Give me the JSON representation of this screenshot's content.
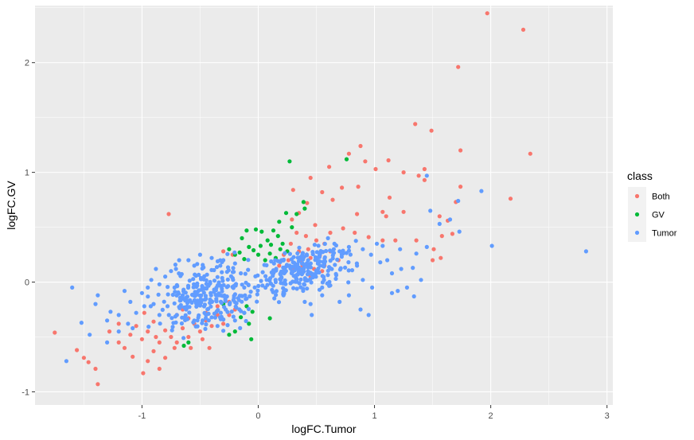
{
  "chart_data": {
    "type": "scatter",
    "title": "",
    "xlabel": "logFC.Tumor",
    "ylabel": "logFC.GV",
    "xlim": [
      -1.92,
      3.05
    ],
    "ylim": [
      -1.12,
      2.52
    ],
    "x_ticks": [
      -1,
      0,
      1,
      2,
      3
    ],
    "y_ticks": [
      -1,
      0,
      1,
      2
    ],
    "x_tick_labels": [
      "-1",
      "0",
      "1",
      "2",
      "3"
    ],
    "y_tick_labels": [
      "-1",
      "0",
      "1",
      "2"
    ],
    "grid": true,
    "panel_background": "#EBEBEB",
    "legend": {
      "title": "class",
      "position": "right",
      "entries": [
        {
          "label": "Both",
          "color": "#F8766D"
        },
        {
          "label": "GV",
          "color": "#00BA38"
        },
        {
          "label": "Tumor",
          "color": "#619CFF"
        }
      ]
    },
    "series": [
      {
        "name": "Both",
        "color": "#F8766D",
        "points": [
          [
            1.97,
            2.45
          ],
          [
            2.28,
            2.3
          ],
          [
            1.72,
            1.96
          ],
          [
            1.35,
            1.44
          ],
          [
            1.49,
            1.38
          ],
          [
            0.88,
            1.24
          ],
          [
            1.74,
            1.2
          ],
          [
            2.34,
            1.17
          ],
          [
            0.78,
            1.17
          ],
          [
            0.92,
            1.1
          ],
          [
            1.12,
            1.11
          ],
          [
            0.61,
            1.05
          ],
          [
            1.01,
            1.03
          ],
          [
            1.25,
            1.0
          ],
          [
            1.43,
            1.03
          ],
          [
            0.45,
            0.95
          ],
          [
            1.38,
            0.97
          ],
          [
            1.43,
            0.93
          ],
          [
            0.86,
            0.87
          ],
          [
            1.74,
            0.87
          ],
          [
            0.3,
            0.84
          ],
          [
            0.55,
            0.82
          ],
          [
            0.72,
            0.86
          ],
          [
            2.17,
            0.76
          ],
          [
            1.13,
            0.77
          ],
          [
            1.7,
            0.73
          ],
          [
            0.64,
            0.75
          ],
          [
            1.07,
            0.64
          ],
          [
            0.85,
            0.62
          ],
          [
            1.25,
            0.64
          ],
          [
            1.56,
            0.6
          ],
          [
            1.63,
            0.56
          ],
          [
            1.1,
            0.6
          ],
          [
            -0.77,
            0.62
          ],
          [
            0.42,
            0.72
          ],
          [
            0.35,
            0.63
          ],
          [
            0.29,
            0.57
          ],
          [
            0.49,
            0.52
          ],
          [
            0.62,
            0.45
          ],
          [
            0.73,
            0.49
          ],
          [
            0.83,
            0.45
          ],
          [
            0.95,
            0.41
          ],
          [
            1.07,
            0.38
          ],
          [
            1.18,
            0.38
          ],
          [
            1.36,
            0.38
          ],
          [
            1.58,
            0.42
          ],
          [
            1.51,
            0.3
          ],
          [
            1.67,
            0.44
          ],
          [
            1.5,
            0.2
          ],
          [
            1.57,
            0.22
          ],
          [
            0.33,
            0.45
          ],
          [
            0.41,
            0.42
          ],
          [
            0.5,
            0.38
          ],
          [
            0.57,
            0.35
          ],
          [
            0.28,
            0.35
          ],
          [
            0.35,
            0.28
          ],
          [
            0.43,
            0.3
          ],
          [
            0.22,
            0.25
          ],
          [
            0.26,
            0.2
          ],
          [
            0.36,
            0.2
          ],
          [
            0.45,
            0.22
          ],
          [
            0.53,
            0.24
          ],
          [
            0.62,
            0.28
          ],
          [
            0.69,
            0.2
          ],
          [
            0.18,
            0.15
          ],
          [
            0.22,
            0.1
          ],
          [
            0.3,
            0.12
          ],
          [
            0.38,
            0.15
          ],
          [
            0.48,
            0.12
          ],
          [
            0.57,
            0.15
          ],
          [
            -1.75,
            -0.46
          ],
          [
            -1.56,
            -0.62
          ],
          [
            -1.5,
            -0.69
          ],
          [
            -1.46,
            -0.73
          ],
          [
            -1.4,
            -0.79
          ],
          [
            -1.38,
            -0.93
          ],
          [
            -1.28,
            -0.45
          ],
          [
            -1.2,
            -0.55
          ],
          [
            -1.15,
            -0.6
          ],
          [
            -1.08,
            -0.68
          ],
          [
            -0.99,
            -0.83
          ],
          [
            -0.95,
            -0.72
          ],
          [
            -0.9,
            -0.63
          ],
          [
            -0.85,
            -0.79
          ],
          [
            -0.8,
            -0.69
          ],
          [
            -1.05,
            -0.4
          ],
          [
            -1.0,
            -0.52
          ],
          [
            -0.95,
            -0.45
          ],
          [
            -0.9,
            -0.36
          ],
          [
            -0.85,
            -0.55
          ],
          [
            -0.8,
            -0.44
          ],
          [
            -0.75,
            -0.5
          ],
          [
            -0.7,
            -0.55
          ],
          [
            -0.65,
            -0.42
          ],
          [
            -0.6,
            -0.5
          ],
          [
            -0.55,
            -0.38
          ],
          [
            -0.5,
            -0.45
          ],
          [
            -0.45,
            -0.35
          ],
          [
            -0.4,
            -0.4
          ],
          [
            -0.35,
            -0.3
          ],
          [
            -0.3,
            -0.38
          ],
          [
            -0.25,
            -0.3
          ],
          [
            -0.2,
            -0.25
          ],
          [
            -0.7,
            -0.3
          ],
          [
            -0.65,
            -0.25
          ],
          [
            -0.6,
            -0.33
          ],
          [
            -0.5,
            -0.2
          ],
          [
            -0.45,
            -0.28
          ],
          [
            -0.35,
            -0.22
          ],
          [
            -0.25,
            -0.18
          ],
          [
            -1.1,
            -0.48
          ],
          [
            -0.98,
            -0.28
          ],
          [
            -0.88,
            -0.5
          ],
          [
            -0.72,
            -0.6
          ],
          [
            -0.58,
            -0.6
          ],
          [
            -0.48,
            -0.52
          ],
          [
            -0.42,
            -0.6
          ],
          [
            -1.2,
            -0.38
          ],
          [
            -0.3,
            0.28
          ],
          [
            -0.22,
            0.25
          ],
          [
            0.45,
            0.05
          ],
          [
            0.55,
            0.1
          ]
        ]
      },
      {
        "name": "GV",
        "color": "#00BA38",
        "points": [
          [
            0.27,
            1.1
          ],
          [
            0.76,
            1.12
          ],
          [
            0.4,
            0.67
          ],
          [
            0.39,
            0.73
          ],
          [
            0.24,
            0.63
          ],
          [
            0.33,
            0.62
          ],
          [
            0.18,
            0.55
          ],
          [
            0.29,
            0.5
          ],
          [
            -0.02,
            0.48
          ],
          [
            0.03,
            0.46
          ],
          [
            -0.1,
            0.47
          ],
          [
            -0.14,
            0.4
          ],
          [
            0.08,
            0.38
          ],
          [
            0.17,
            0.42
          ],
          [
            0.02,
            0.33
          ],
          [
            0.11,
            0.34
          ],
          [
            0.19,
            0.3
          ],
          [
            -0.08,
            0.32
          ],
          [
            0.0,
            0.25
          ],
          [
            0.1,
            0.26
          ],
          [
            -0.16,
            0.27
          ],
          [
            -0.04,
            0.29
          ],
          [
            0.06,
            0.2
          ],
          [
            0.15,
            0.22
          ],
          [
            -0.12,
            0.21
          ],
          [
            0.21,
            0.35
          ],
          [
            0.25,
            0.28
          ],
          [
            -0.25,
            0.3
          ],
          [
            -0.2,
            0.25
          ],
          [
            0.13,
            0.47
          ],
          [
            -0.1,
            -0.22
          ],
          [
            -0.05,
            -0.27
          ],
          [
            -0.15,
            -0.32
          ],
          [
            -0.08,
            -0.38
          ],
          [
            -0.2,
            -0.45
          ],
          [
            -0.25,
            -0.48
          ],
          [
            -0.06,
            -0.52
          ],
          [
            -0.6,
            -0.55
          ],
          [
            0.1,
            -0.33
          ],
          [
            -0.12,
            -0.28
          ],
          [
            -0.64,
            -0.58
          ],
          [
            -0.3,
            -0.2
          ]
        ]
      },
      {
        "name": "Tumor",
        "color": "#619CFF",
        "points": [
          [
            2.82,
            0.28
          ],
          [
            2.01,
            0.33
          ],
          [
            1.92,
            0.83
          ],
          [
            1.73,
            0.46
          ],
          [
            1.65,
            0.57
          ],
          [
            1.48,
            0.65
          ],
          [
            1.56,
            0.53
          ],
          [
            1.45,
            0.32
          ],
          [
            1.36,
            0.26
          ],
          [
            1.22,
            0.3
          ],
          [
            1.07,
            0.33
          ],
          [
            1.45,
            0.97
          ],
          [
            1.72,
            0.74
          ],
          [
            1.33,
            0.13
          ],
          [
            1.23,
            0.12
          ],
          [
            1.11,
            0.2
          ],
          [
            0.97,
            0.25
          ],
          [
            1.15,
            0.08
          ],
          [
            1.28,
            -0.05
          ],
          [
            1.4,
            0.02
          ],
          [
            1.34,
            -0.13
          ],
          [
            1.15,
            -0.1
          ],
          [
            0.98,
            -0.05
          ],
          [
            0.9,
            0.02
          ],
          [
            0.85,
            0.15
          ],
          [
            0.78,
            -0.12
          ],
          [
            0.7,
            -0.18
          ],
          [
            0.62,
            -0.03
          ],
          [
            0.88,
            -0.25
          ],
          [
            0.45,
            -0.2
          ],
          [
            0.46,
            -0.3
          ],
          [
            0.55,
            -0.12
          ],
          [
            0.95,
            -0.3
          ],
          [
            1.05,
            0.18
          ],
          [
            1.2,
            -0.08
          ],
          [
            0.78,
            0.32
          ],
          [
            0.6,
            0.4
          ],
          [
            0.7,
            0.28
          ],
          [
            -1.6,
            -0.05
          ],
          [
            -1.4,
            -0.2
          ],
          [
            -1.38,
            -0.12
          ],
          [
            -1.27,
            -0.27
          ],
          [
            -1.2,
            -0.3
          ],
          [
            -1.1,
            -0.18
          ],
          [
            -1.0,
            -0.1
          ],
          [
            -0.95,
            -0.05
          ],
          [
            -0.92,
            0.02
          ],
          [
            -0.85,
            -0.02
          ],
          [
            -0.8,
            0.05
          ],
          [
            -0.75,
            0.1
          ],
          [
            -0.68,
            0.2
          ],
          [
            -0.6,
            0.2
          ],
          [
            -0.55,
            0.15
          ],
          [
            -1.65,
            -0.72
          ],
          [
            -1.45,
            -0.48
          ],
          [
            -1.3,
            -0.55
          ],
          [
            -1.2,
            -0.45
          ],
          [
            -1.12,
            -0.38
          ],
          [
            -1.05,
            -0.28
          ],
          [
            -0.98,
            -0.22
          ],
          [
            -0.9,
            -0.2
          ],
          [
            -0.85,
            -0.3
          ],
          [
            -0.78,
            -0.22
          ],
          [
            -0.7,
            -0.3
          ],
          [
            -0.62,
            -0.25
          ],
          [
            -0.55,
            -0.35
          ],
          [
            -1.3,
            -0.35
          ],
          [
            -1.15,
            -0.08
          ],
          [
            -0.88,
            0.12
          ],
          [
            -0.72,
            -0.05
          ],
          [
            -0.5,
            0.25
          ],
          [
            -0.4,
            0.22
          ],
          [
            -0.3,
            0.2
          ],
          [
            -0.2,
            0.17
          ],
          [
            -0.15,
            0.08
          ],
          [
            -0.12,
            -0.05
          ],
          [
            -0.1,
            -0.15
          ],
          [
            -0.2,
            -0.35
          ],
          [
            -0.28,
            -0.25
          ],
          [
            -0.35,
            -0.4
          ],
          [
            -0.45,
            -0.15
          ],
          [
            -0.65,
            -0.12
          ],
          [
            0.2,
            0.2
          ],
          [
            0.15,
            0.0
          ],
          [
            0.65,
            0.3
          ],
          [
            0.9,
            0.3
          ],
          [
            1.02,
            0.35
          ],
          [
            -1.52,
            -0.37
          ],
          [
            -1.08,
            -0.42
          ],
          [
            0.55,
            -0.05
          ],
          [
            0.4,
            -0.18
          ]
        ]
      }
    ],
    "dense_clusters": [
      {
        "series": "Tumor",
        "center": [
          -0.42,
          -0.13
        ],
        "spread": [
          0.2,
          0.14
        ],
        "count": 260
      },
      {
        "series": "Tumor",
        "center": [
          0.37,
          0.1
        ],
        "spread": [
          0.19,
          0.1
        ],
        "count": 240
      }
    ]
  }
}
